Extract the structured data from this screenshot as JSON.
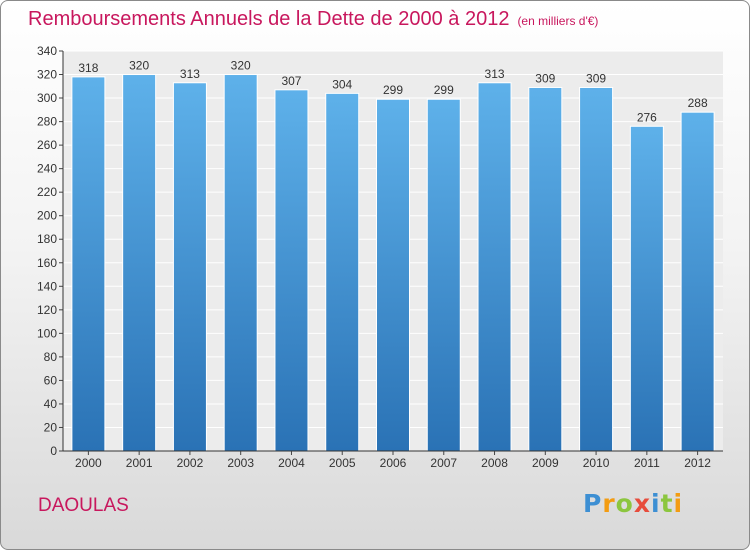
{
  "chart_data": {
    "type": "bar",
    "title": "Remboursements Annuels de la Dette de 2000 à 2012",
    "subtitle": "(en milliers d'€)",
    "categories": [
      "2000",
      "2001",
      "2002",
      "2003",
      "2004",
      "2005",
      "2006",
      "2007",
      "2008",
      "2009",
      "2010",
      "2011",
      "2012"
    ],
    "values": [
      318,
      320,
      313,
      320,
      307,
      304,
      299,
      299,
      313,
      309,
      309,
      276,
      288
    ],
    "ylim": [
      0,
      340
    ],
    "yticks": [
      0,
      20,
      40,
      60,
      80,
      100,
      120,
      140,
      160,
      180,
      200,
      220,
      240,
      260,
      280,
      300,
      320,
      340
    ],
    "grid": true,
    "bar_color": "#3d8fd3",
    "title_color": "#c8175d"
  },
  "commune": "DAOULAS",
  "logo": {
    "text": "Proxiti",
    "letter_colors": [
      "#3d8fd3",
      "#f39c12",
      "#8cc63f",
      "#e74c3c",
      "#3d8fd3",
      "#8cc63f",
      "#f39c12"
    ]
  }
}
